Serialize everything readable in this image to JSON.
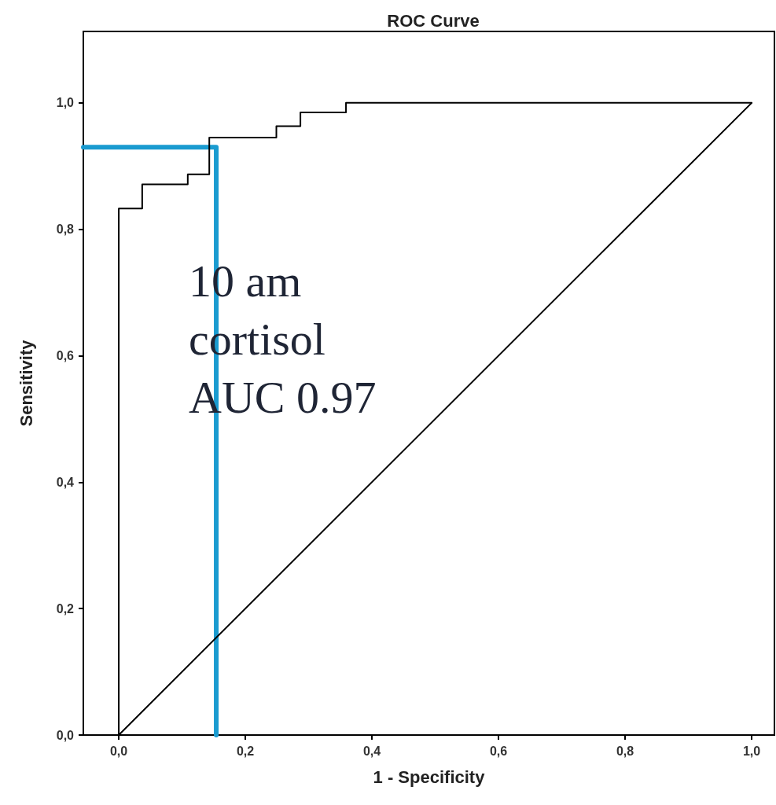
{
  "chart_data": {
    "type": "line",
    "title": "ROC Curve",
    "xlabel": "1 - Specificity",
    "ylabel": "Sensitivity",
    "annotations": [
      "10 am\ncortisol\nAUC 0.97"
    ],
    "xlim": [
      -0.056,
      1.036
    ],
    "ylim": [
      0,
      1.113
    ],
    "xticks": [
      {
        "value": 0,
        "label": "0,0"
      },
      {
        "value": 0.2,
        "label": "0,2"
      },
      {
        "value": 0.4,
        "label": "0,4"
      },
      {
        "value": 0.6,
        "label": "0,6"
      },
      {
        "value": 0.8,
        "label": "0,8"
      },
      {
        "value": 1,
        "label": "1,0"
      }
    ],
    "yticks": [
      {
        "value": 0,
        "label": "0,0"
      },
      {
        "value": 0.2,
        "label": "0,2"
      },
      {
        "value": 0.4,
        "label": "0,4"
      },
      {
        "value": 0.6,
        "label": "0,6"
      },
      {
        "value": 0.8,
        "label": "0,8"
      },
      {
        "value": 1,
        "label": "1,0"
      }
    ],
    "grid": false,
    "marker": "none",
    "line_style": "solid",
    "series": [
      {
        "color": "#000000",
        "x": [
          0,
          0,
          0.037,
          0.037,
          0.109,
          0.109,
          0.143,
          0.143,
          0.249,
          0.249,
          0.287,
          0.287,
          0.359,
          0.359,
          1
        ],
        "values": [
          0,
          0.833,
          0.833,
          0.871,
          0.871,
          0.887,
          0.887,
          0.945,
          0.945,
          0.963,
          0.963,
          0.985,
          0.985,
          1,
          1
        ]
      },
      {
        "color": "#000000",
        "x": [
          0,
          1
        ],
        "values": [
          0,
          1
        ]
      },
      {
        "color": "#1a9bd0",
        "x": [
          -0.056,
          0.154,
          0.154
        ],
        "values": [
          0.93,
          0.93,
          0
        ]
      }
    ]
  }
}
